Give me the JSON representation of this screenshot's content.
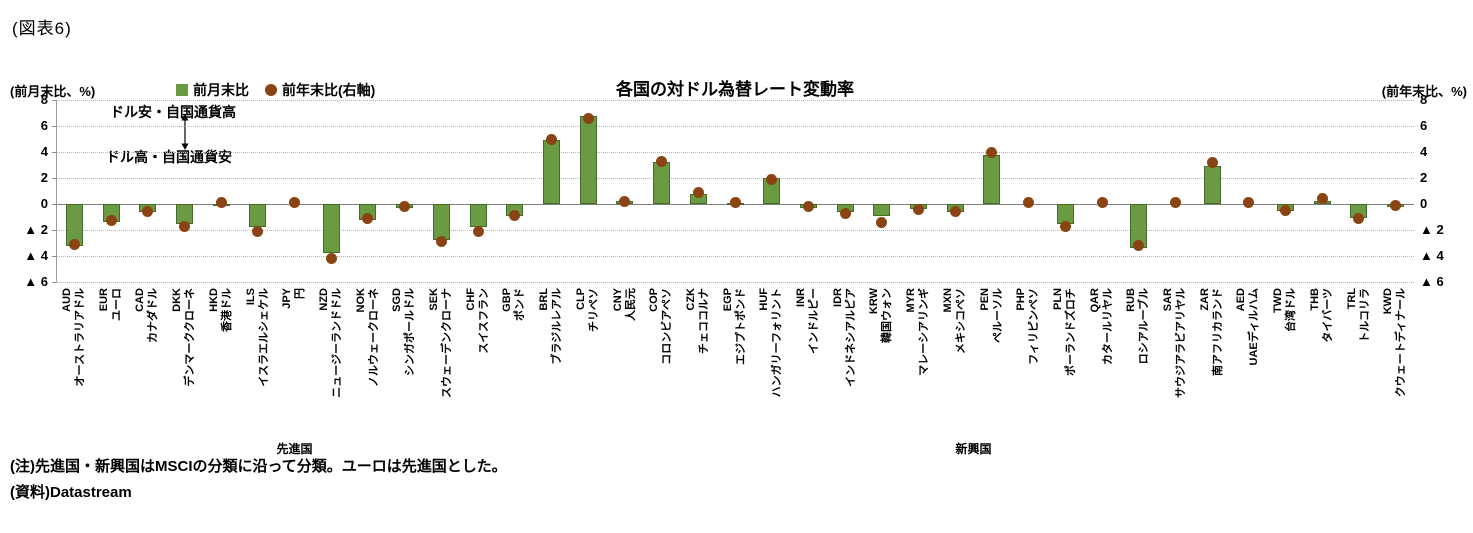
{
  "figure_label": "(図表6)",
  "header": {
    "left_axis_unit": "(前月末比、%)",
    "right_axis_unit": "(前年末比、%)",
    "title": "各国の対ドル為替レート変動率",
    "legend": [
      {
        "label": "前月末比",
        "marker": "square",
        "color": "#6a9a41"
      },
      {
        "label": "前年末比(右軸)",
        "marker": "circle",
        "color": "#8a4413"
      }
    ]
  },
  "annotations": {
    "top": "ドル安・自国通貨高",
    "bottom": "ドル高・自国通貨安",
    "arrow_icon": "↕"
  },
  "chart_data": {
    "type": "bar",
    "title": "各国の対ドル為替レート変動率",
    "ylim": [
      -6,
      8
    ],
    "yticks": [
      8,
      6,
      4,
      2,
      0,
      -2,
      -4,
      -6
    ],
    "ytick_labels": [
      "8",
      "6",
      "4",
      "2",
      "0",
      "▲ 2",
      "▲ 4",
      "▲ 6"
    ],
    "grid": true,
    "legend_position": "top-left",
    "categories": [
      "AUD",
      "EUR",
      "CAD",
      "DKK",
      "HKD",
      "ILS",
      "JPY",
      "NZD",
      "NOK",
      "SGD",
      "SEK",
      "CHF",
      "GBP",
      "BRL",
      "CLP",
      "CNY",
      "COP",
      "CZK",
      "EGP",
      "HUF",
      "INR",
      "IDR",
      "KRW",
      "MYR",
      "MXN",
      "PEN",
      "PHP",
      "PLN",
      "QAR",
      "RUB",
      "SAR",
      "ZAR",
      "AED",
      "TWD",
      "THB",
      "TRL",
      "KWD"
    ],
    "category_names": [
      "オーストラリアドル",
      "ユーロ",
      "カナダドル",
      "デンマーククローネ",
      "香港ドル",
      "イスラエルシェケル",
      "円",
      "ニュージーランドドル",
      "ノルウェークローネ",
      "シンガポールドル",
      "スウェーデンクローナ",
      "スイスフラン",
      "ポンド",
      "ブラジルレアル",
      "チリペソ",
      "人民元",
      "コロンビアペソ",
      "チェココルナ",
      "エジプトポンド",
      "ハンガリーフォリント",
      "インドルピー",
      "インドネシアルピア",
      "韓国ウォン",
      "マレーシアリンギ",
      "メキシコペソ",
      "ペルーソル",
      "フィリピンペソ",
      "ポーランドズロチ",
      "カタールリヤル",
      "ロシアルーブル",
      "サウジアラビアリヤル",
      "南アフリカランド",
      "UAEディルハム",
      "台湾ドル",
      "タイバーツ",
      "トルコリラ",
      "クウェートディナール"
    ],
    "groups": [
      {
        "label": "先進国",
        "from": 0,
        "to": 12
      },
      {
        "label": "新興国",
        "from": 13,
        "to": 36
      }
    ],
    "series": [
      {
        "name": "前月末比",
        "type": "bar",
        "axis": "left",
        "color": "#6a9a41",
        "border": "#466b2a",
        "values": [
          -3.2,
          -1.4,
          -0.6,
          -1.5,
          -0.1,
          -1.8,
          0.0,
          -3.8,
          -1.2,
          -0.3,
          -2.8,
          -1.8,
          -0.9,
          4.9,
          6.8,
          0.2,
          3.2,
          0.8,
          0.1,
          2.0,
          -0.3,
          -0.6,
          -0.9,
          -0.4,
          -0.6,
          3.8,
          0.0,
          -1.5,
          0.0,
          -3.4,
          0.0,
          2.9,
          0.0,
          -0.5,
          0.2,
          -1.1,
          -0.2
        ]
      },
      {
        "name": "前年末比(右軸)",
        "type": "point",
        "axis": "right",
        "color": "#8a4413",
        "values": [
          -3.1,
          -1.3,
          -0.6,
          -1.7,
          0.1,
          -2.1,
          0.1,
          -4.2,
          -1.1,
          -0.2,
          -2.9,
          -2.1,
          -0.9,
          5.0,
          6.6,
          0.2,
          3.3,
          0.9,
          0.1,
          1.9,
          -0.2,
          -0.7,
          -1.4,
          -0.4,
          -0.6,
          4.0,
          0.1,
          -1.7,
          0.1,
          -3.2,
          0.1,
          3.2,
          0.1,
          -0.5,
          0.4,
          -1.1,
          -0.1
        ]
      }
    ]
  },
  "notes": [
    "(注)先進国・新興国はMSCIの分類に沿って分類。ユーロは先進国とした。",
    "(資料)Datastream"
  ]
}
